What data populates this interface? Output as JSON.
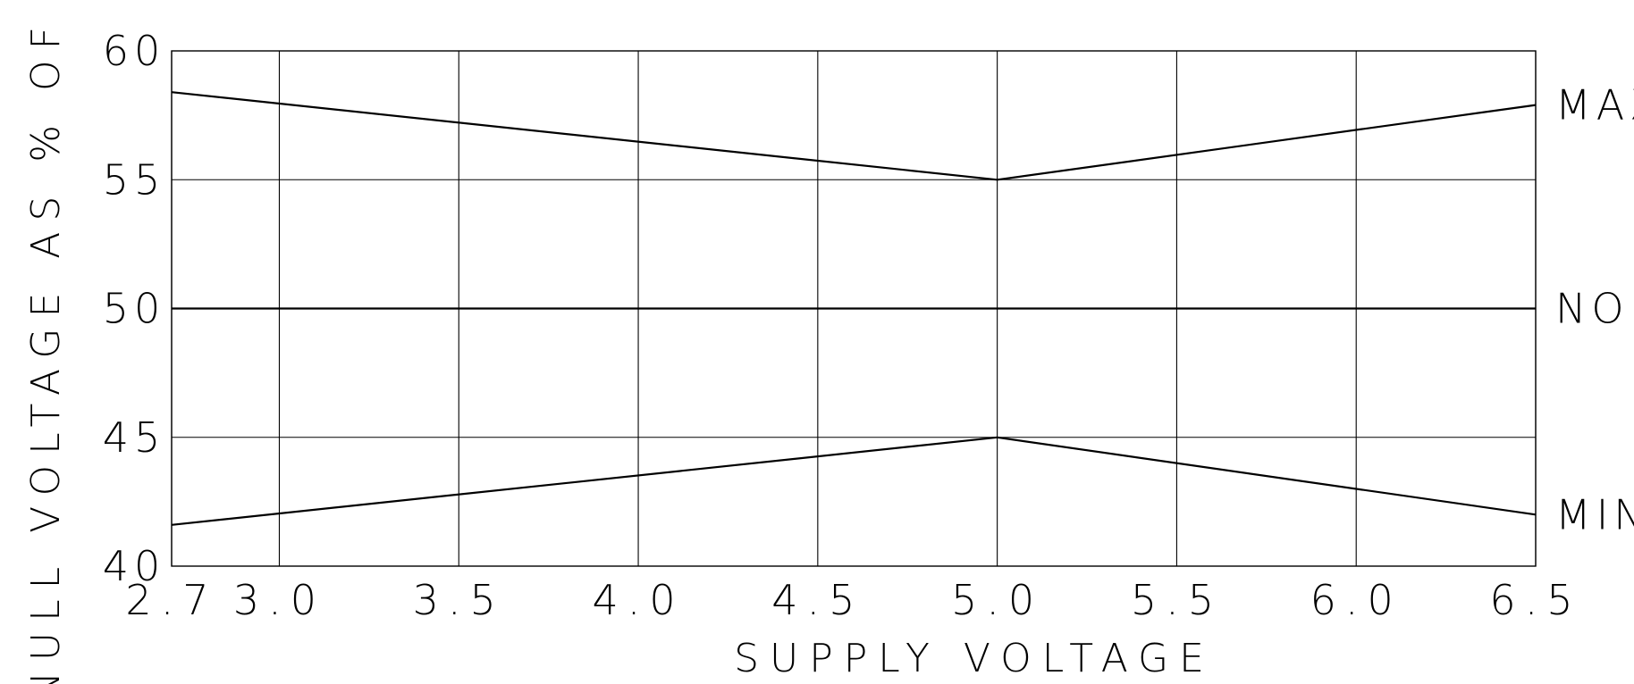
{
  "chart_data": {
    "type": "line",
    "title": "",
    "xlabel": "SUPPLY VOLTAGE",
    "ylabel": "NULL VOLTAGE AS % OF Vs",
    "xlim": [
      2.7,
      6.5
    ],
    "ylim": [
      40,
      60
    ],
    "grid": true,
    "x_ticks": [
      2.7,
      3.0,
      3.5,
      4.0,
      4.5,
      5.0,
      5.5,
      6.0,
      6.5
    ],
    "x_tick_labels": [
      "2.7",
      "3.0",
      "3.5",
      "4.0",
      "4.5",
      "5.0",
      "5.5",
      "6.0",
      "6.5"
    ],
    "y_ticks": [
      40,
      45,
      50,
      55,
      60
    ],
    "y_tick_labels": [
      "40",
      "45",
      "50",
      "55",
      "60"
    ],
    "series": [
      {
        "name": "MAX",
        "x": [
          2.7,
          5.0,
          6.5
        ],
        "y": [
          58.4,
          55.0,
          57.9
        ]
      },
      {
        "name": "NOM",
        "x": [
          2.7,
          6.5
        ],
        "y": [
          50.0,
          50.0
        ]
      },
      {
        "name": "MIN",
        "x": [
          2.7,
          5.0,
          6.5
        ],
        "y": [
          41.6,
          45.0,
          42.0
        ]
      }
    ]
  }
}
